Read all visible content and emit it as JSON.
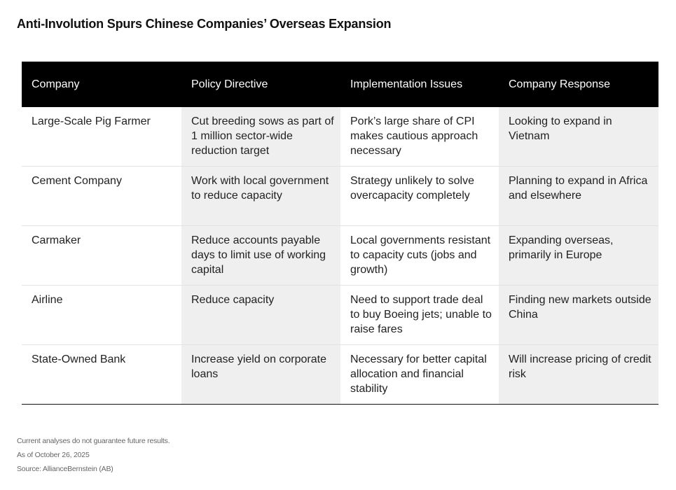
{
  "title": "Anti-Involution Spurs Chinese Companies’ Overseas Expansion",
  "table": {
    "headers": [
      "Company",
      "Policy Directive",
      "Implementation Issues",
      "Company Response"
    ],
    "rows": [
      [
        "Large-Scale Pig Farmer",
        "Cut breeding sows as part of 1 million sector-wide reduction target",
        "Pork’s large share of CPI makes cautious approach necessary",
        "Looking to expand in Vietnam"
      ],
      [
        "Cement Company",
        "Work with local government to reduce capacity",
        "Strategy unlikely to solve overcapacity completely",
        "Planning to expand in Africa and elsewhere"
      ],
      [
        "Carmaker",
        "Reduce accounts payable days to limit use of working capital",
        "Local governments resistant to capacity cuts (jobs and growth)",
        "Expanding overseas, primarily in Europe"
      ],
      [
        "Airline",
        "Reduce capacity",
        "Need to support trade deal to buy Boeing jets; unable to raise fares",
        "Finding new markets outside China"
      ],
      [
        "State-Owned Bank",
        "Increase yield on corporate loans",
        "Necessary for better capital allocation and financial stability",
        "Will increase pricing of credit risk"
      ]
    ]
  },
  "footer": {
    "disclaimer": "Current analyses do not guarantee future results.",
    "date": "As of October 26, 2025",
    "source": "Source: AllianceBernstein (AB)"
  },
  "colors": {
    "header_bg": "#000000",
    "shade": "#efefef"
  }
}
